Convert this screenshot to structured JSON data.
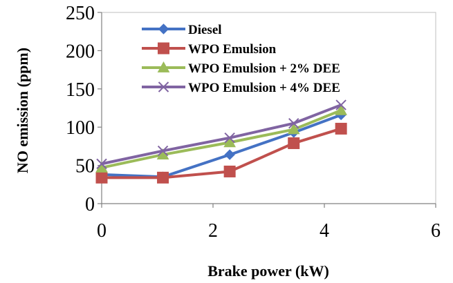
{
  "chart_data": {
    "type": "line",
    "xlabel": "Brake power (kW)",
    "ylabel": "NO emission (ppm)",
    "xlim": [
      0,
      6
    ],
    "ylim": [
      0,
      250
    ],
    "xticks": [
      0,
      2,
      4,
      6
    ],
    "yticks": [
      0,
      50,
      100,
      150,
      200,
      250
    ],
    "grid": false,
    "legend_position": "top-center",
    "x": [
      0,
      1.1,
      2.3,
      3.45,
      4.3
    ],
    "series": [
      {
        "name": "Diesel",
        "values": [
          38,
          35,
          64,
          93,
          116
        ],
        "color": "#4472C4",
        "marker": "diamond"
      },
      {
        "name": "WPO Emulsion",
        "values": [
          34,
          34,
          42,
          79,
          98
        ],
        "color": "#C0504D",
        "marker": "square"
      },
      {
        "name": "WPO Emulsion + 2% DEE",
        "values": [
          47,
          64,
          80,
          97,
          122
        ],
        "color": "#9BBB59",
        "marker": "triangle"
      },
      {
        "name": "WPO Emulsion + 4% DEE",
        "values": [
          52,
          69,
          86,
          105,
          129
        ],
        "color": "#8064A2",
        "marker": "x"
      }
    ]
  }
}
